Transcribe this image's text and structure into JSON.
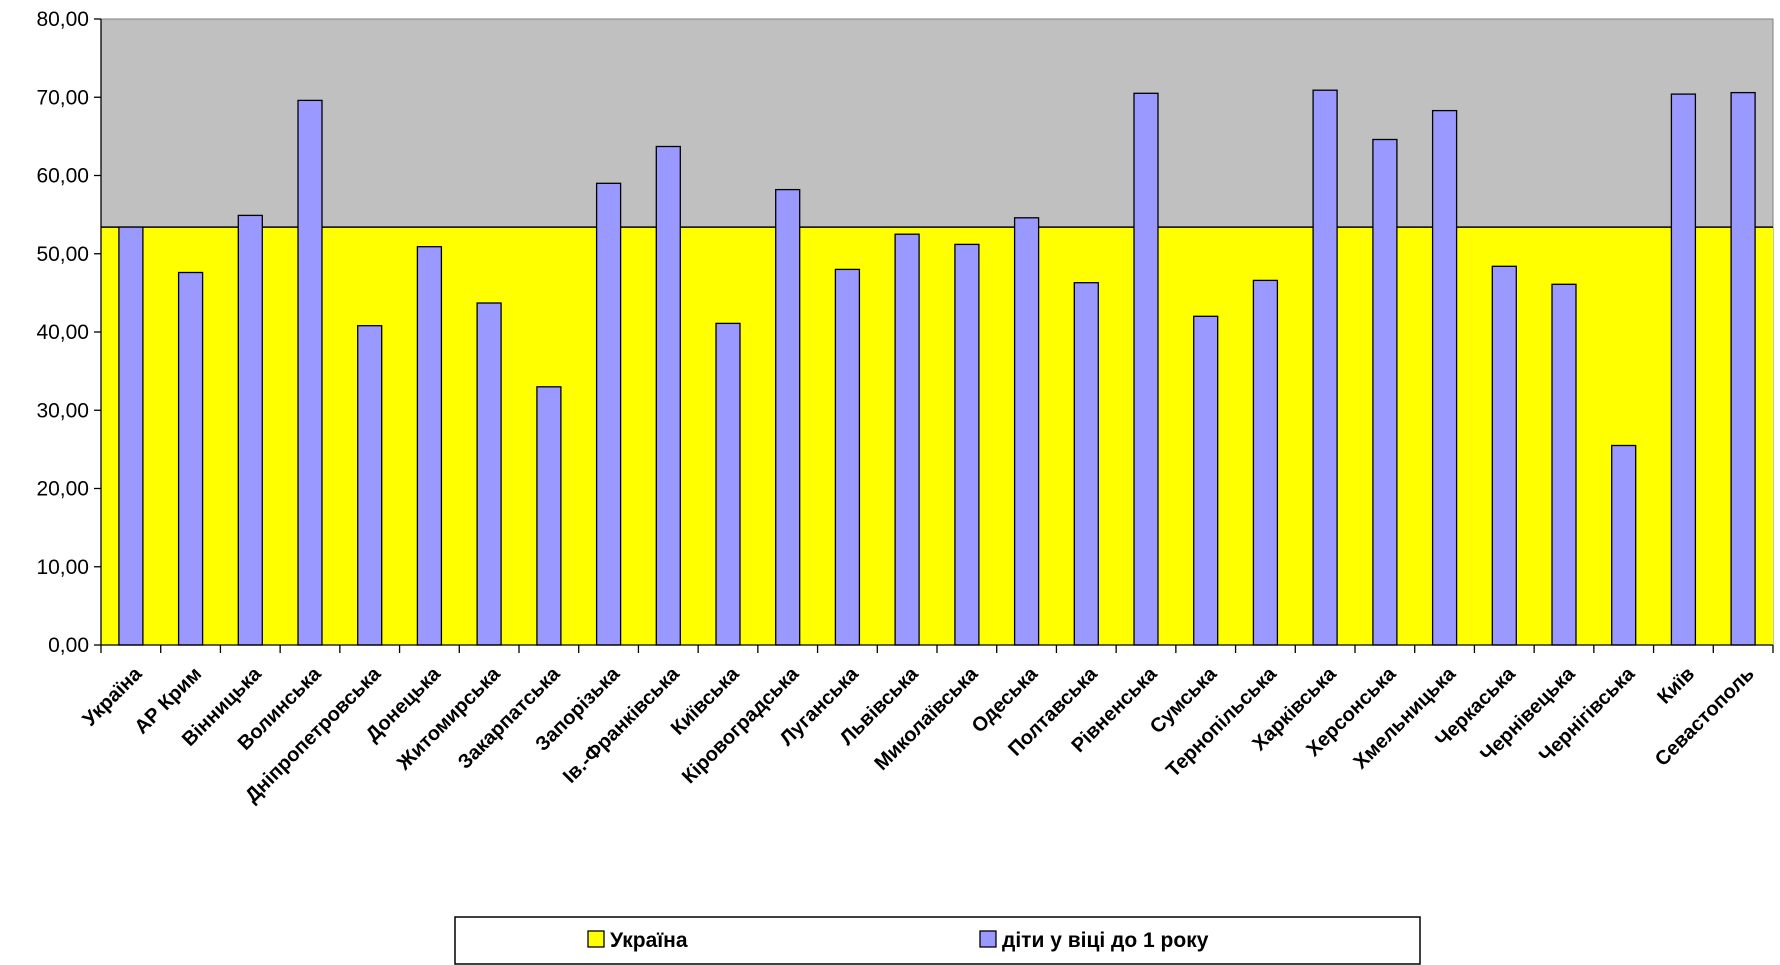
{
  "chart_data": {
    "type": "bar",
    "categories": [
      "Україна",
      "АР Крим",
      "Вінницька",
      "Волинська",
      "Дніпропетровська",
      "Донецька",
      "Житомирська",
      "Закарпатська",
      "Запорізька",
      "Ів.-Франківська",
      "Київська",
      "Кіровоградська",
      "Луганська",
      "Львівська",
      "Миколаївська",
      "Одеська",
      "Полтавська",
      "Рівненська",
      "Сумська",
      "Тернопільська",
      "Харківська",
      "Херсонська",
      "Хмельницька",
      "Черкаська",
      "Чернівецька",
      "Чернігівська",
      "Київ",
      "Севастополь"
    ],
    "series": [
      {
        "name": "Україна",
        "type": "area",
        "color": "#ffff00",
        "value": 53.4
      },
      {
        "name": "діти у віці до 1 року",
        "type": "bar",
        "color": "#9999ff",
        "values": [
          53.4,
          47.6,
          54.9,
          69.6,
          40.8,
          50.9,
          43.7,
          33.0,
          59.0,
          63.7,
          41.1,
          58.2,
          48.0,
          52.5,
          51.2,
          54.6,
          46.3,
          70.5,
          42.0,
          46.6,
          70.9,
          64.6,
          68.3,
          48.4,
          46.1,
          25.5,
          70.4,
          70.6
        ]
      }
    ],
    "ylim": [
      0,
      80
    ],
    "yticks": [
      "0,00",
      "10,00",
      "20,00",
      "30,00",
      "40,00",
      "50,00",
      "60,00",
      "70,00",
      "80,00"
    ],
    "background_color": "#c0c0c0",
    "grid": false,
    "legend_position": "bottom",
    "title": "",
    "xlabel": "",
    "ylabel": ""
  }
}
